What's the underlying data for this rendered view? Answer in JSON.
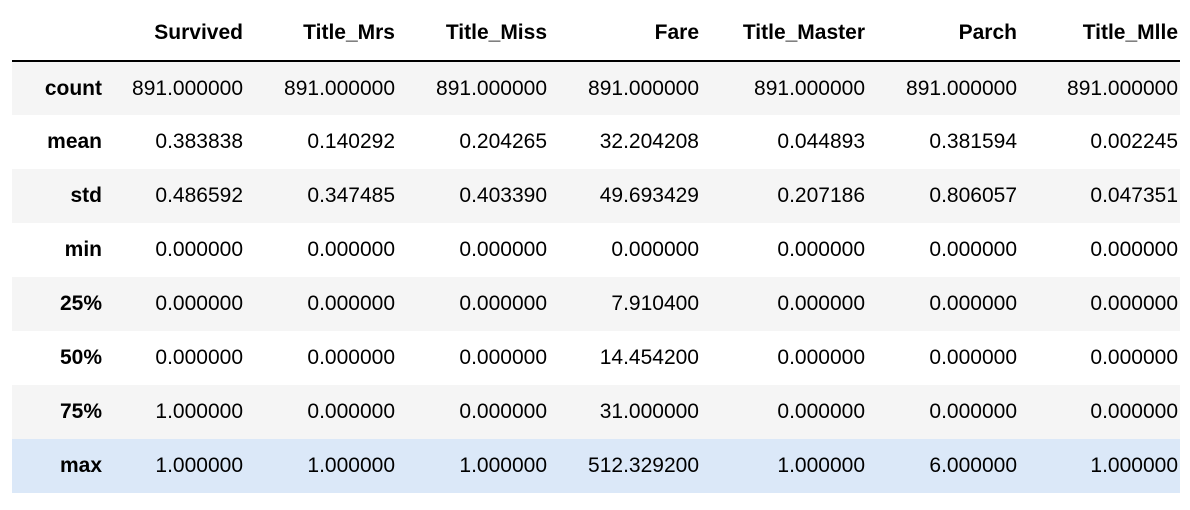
{
  "table": {
    "index_header": "",
    "columns": [
      "Survived",
      "Title_Mrs",
      "Title_Miss",
      "Fare",
      "Title_Master",
      "Parch",
      "Title_Mlle"
    ],
    "rows": [
      {
        "label": "count",
        "values": [
          "891.000000",
          "891.000000",
          "891.000000",
          "891.000000",
          "891.000000",
          "891.000000",
          "891.000000"
        ]
      },
      {
        "label": "mean",
        "values": [
          "0.383838",
          "0.140292",
          "0.204265",
          "32.204208",
          "0.044893",
          "0.381594",
          "0.002245"
        ]
      },
      {
        "label": "std",
        "values": [
          "0.486592",
          "0.347485",
          "0.403390",
          "49.693429",
          "0.207186",
          "0.806057",
          "0.047351"
        ]
      },
      {
        "label": "min",
        "values": [
          "0.000000",
          "0.000000",
          "0.000000",
          "0.000000",
          "0.000000",
          "0.000000",
          "0.000000"
        ]
      },
      {
        "label": "25%",
        "values": [
          "0.000000",
          "0.000000",
          "0.000000",
          "7.910400",
          "0.000000",
          "0.000000",
          "0.000000"
        ]
      },
      {
        "label": "50%",
        "values": [
          "0.000000",
          "0.000000",
          "0.000000",
          "14.454200",
          "0.000000",
          "0.000000",
          "0.000000"
        ]
      },
      {
        "label": "75%",
        "values": [
          "1.000000",
          "0.000000",
          "0.000000",
          "31.000000",
          "0.000000",
          "0.000000",
          "0.000000"
        ]
      },
      {
        "label": "max",
        "values": [
          "1.000000",
          "1.000000",
          "1.000000",
          "512.329200",
          "1.000000",
          "6.000000",
          "1.000000"
        ]
      }
    ],
    "highlighted_row": "max"
  },
  "colors": {
    "striped_row": "#f5f5f5",
    "highlight_row": "#dbe8f8",
    "header_border": "#000000"
  }
}
